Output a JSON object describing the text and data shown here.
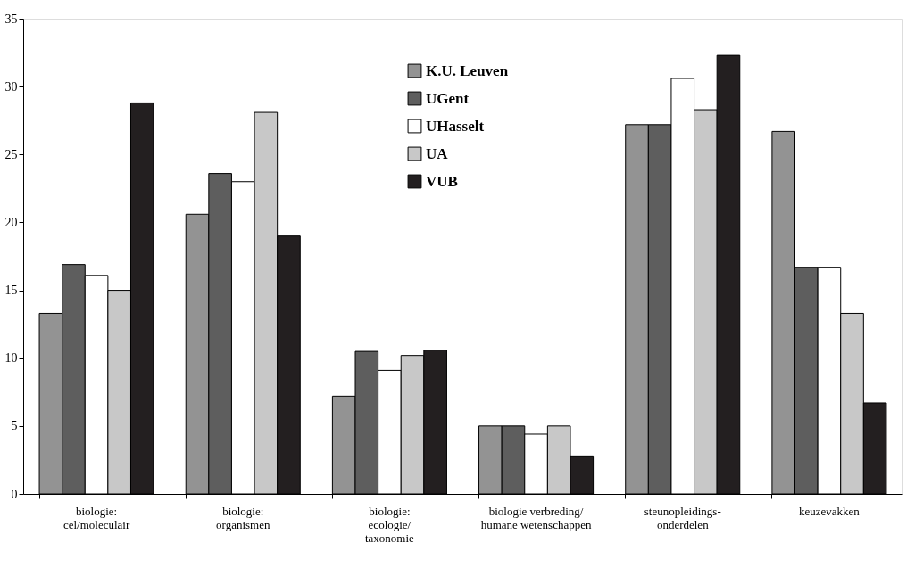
{
  "chart_data": {
    "type": "bar",
    "categories": [
      "biologie:\ncel/moleculair",
      "biologie:\norganismen",
      "biologie:\necologie/\ntaxonomie",
      "biologie verbreding/\nhumane wetenschappen",
      "steunopleidings-\nonderdelen",
      "keuzevakken"
    ],
    "series": [
      {
        "name": "K.U. Leuven",
        "color": "#939393",
        "values": [
          13.3,
          20.6,
          7.2,
          5.0,
          27.2,
          26.7
        ]
      },
      {
        "name": "UGent",
        "color": "#5e5e5e",
        "values": [
          16.9,
          23.6,
          10.5,
          5.0,
          27.2,
          16.7
        ]
      },
      {
        "name": "UHasselt",
        "color": "#ffffff",
        "values": [
          16.1,
          23.0,
          9.1,
          4.4,
          30.6,
          16.7
        ]
      },
      {
        "name": "UA",
        "color": "#c8c8c8",
        "values": [
          15.0,
          28.1,
          10.2,
          5.0,
          28.3,
          13.3
        ]
      },
      {
        "name": "VUB",
        "color": "#231f20",
        "values": [
          28.8,
          19.0,
          10.6,
          2.8,
          32.3,
          6.7
        ]
      }
    ],
    "ylim": [
      0,
      35
    ],
    "yticks": [
      0,
      5,
      10,
      15,
      20,
      25,
      30,
      35
    ],
    "grid": false,
    "legend": "top"
  }
}
